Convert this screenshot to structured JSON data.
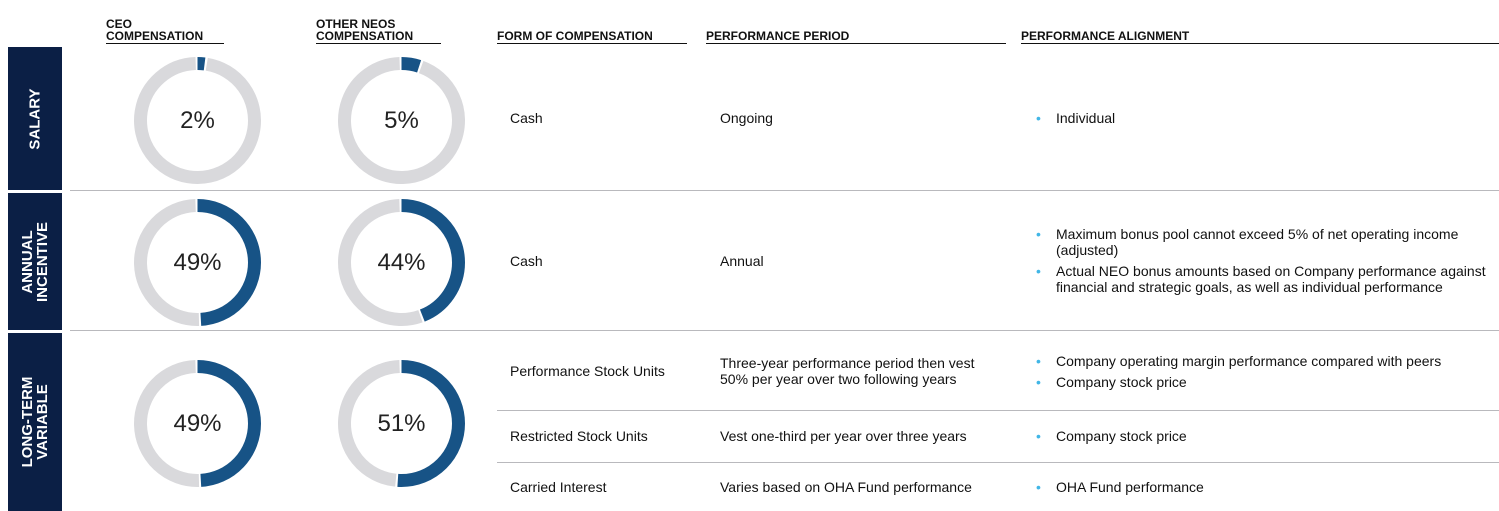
{
  "headers": [
    "CEO COMPENSATION",
    "OTHER NEOs COMPENSATION",
    "FORM OF COMPENSATION",
    "PERFORMANCE PERIOD",
    "PERFORMANCE ALIGNMENT"
  ],
  "rows": [
    {
      "label": "SALARY",
      "ceo": {
        "value": 2,
        "label": "2%"
      },
      "neo": {
        "value": 5,
        "label": "5%"
      },
      "items": [
        {
          "form": "Cash",
          "period": "Ongoing",
          "alignment": [
            "Individual"
          ]
        }
      ]
    },
    {
      "label": "ANNUAL INCENTIVE",
      "ceo": {
        "value": 49,
        "label": "49%"
      },
      "neo": {
        "value": 44,
        "label": "44%"
      },
      "items": [
        {
          "form": "Cash",
          "period": "Annual",
          "alignment": [
            "Maximum bonus pool cannot exceed 5% of net operating income (adjusted)",
            "Actual NEO bonus amounts based on Company performance against financial and strategic goals, as well as individual performance"
          ]
        }
      ]
    },
    {
      "label": "LONG-TERM VARIABLE",
      "ceo": {
        "value": 49,
        "label": "49%"
      },
      "neo": {
        "value": 51,
        "label": "51%"
      },
      "items": [
        {
          "form": "Performance Stock Units",
          "period": "Three-year performance period then vest 50% per year over two following years",
          "alignment": [
            "Company operating margin performance compared with peers",
            "Company stock price"
          ]
        },
        {
          "form": "Restricted Stock Units",
          "period": "Vest one-third per year over three years",
          "alignment": [
            "Company stock price"
          ]
        },
        {
          "form": "Carried Interest",
          "period": "Varies based on OHA Fund performance",
          "alignment": [
            "OHA Fund performance"
          ]
        }
      ]
    }
  ]
}
